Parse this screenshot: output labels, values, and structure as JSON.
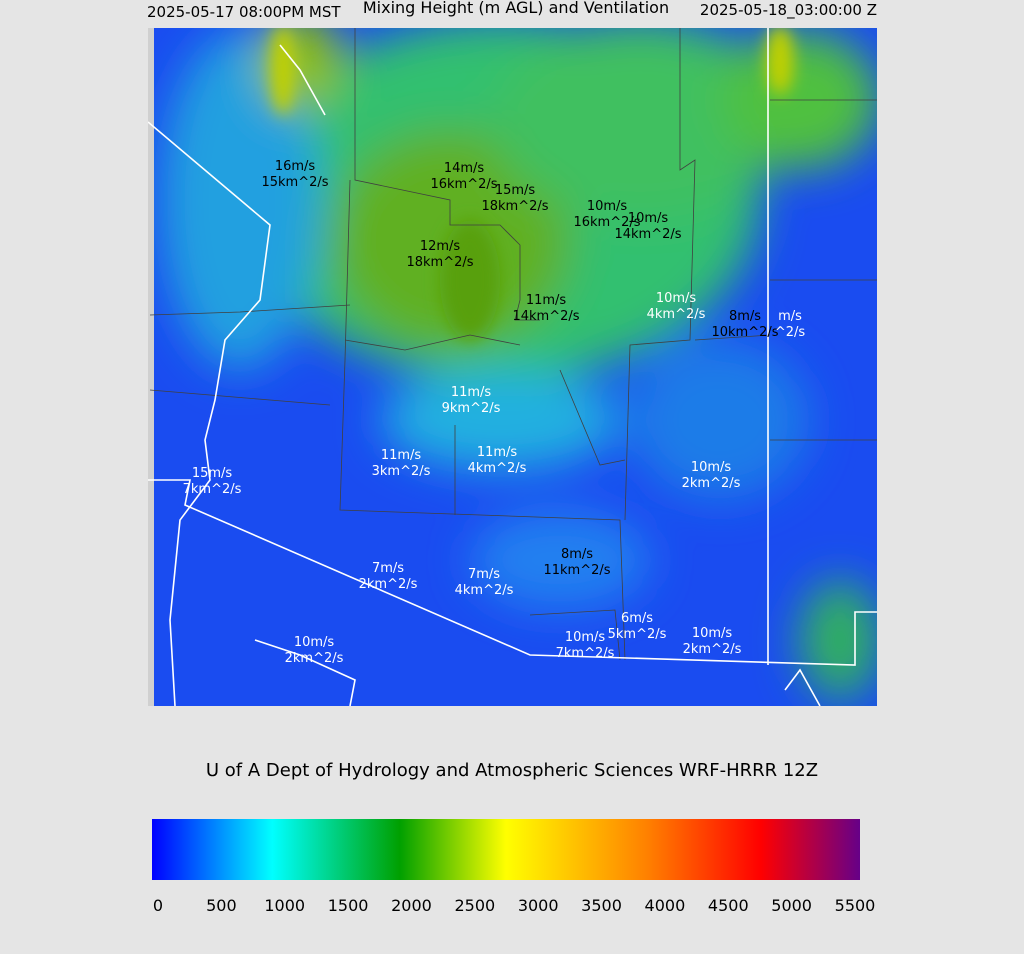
{
  "header": {
    "valid_local": "2025-05-17 08:00PM MST",
    "title": "Mixing Height (m AGL) and Ventilation",
    "valid_utc": "2025-05-18_03:00:00 Z"
  },
  "map": {
    "labels": [
      {
        "speed": "16m/s",
        "ventilation": "15km^2/s"
      },
      {
        "speed": "14m/s",
        "ventilation": "16km^2/s"
      },
      {
        "speed": "15m/s",
        "ventilation": "18km^2/s"
      },
      {
        "speed": "10m/s",
        "ventilation": "16km^2/s"
      },
      {
        "speed": "10m/s",
        "ventilation": "14km^2/s"
      },
      {
        "speed": "12m/s",
        "ventilation": "18km^2/s"
      },
      {
        "speed": "11m/s",
        "ventilation": "14km^2/s"
      },
      {
        "speed": "10m/s",
        "ventilation": "4km^2/s"
      },
      {
        "speed": "8m/s",
        "ventilation": "10km^2/s"
      },
      {
        "speed": "m/s",
        "ventilation": "^2/s"
      },
      {
        "speed": "11m/s",
        "ventilation": "9km^2/s"
      },
      {
        "speed": "11m/s",
        "ventilation": "3km^2/s"
      },
      {
        "speed": "11m/s",
        "ventilation": "4km^2/s"
      },
      {
        "speed": "15m/s",
        "ventilation": "7km^2/s"
      },
      {
        "speed": "10m/s",
        "ventilation": "2km^2/s"
      },
      {
        "speed": "8m/s",
        "ventilation": "11km^2/s"
      },
      {
        "speed": "7m/s",
        "ventilation": "2km^2/s"
      },
      {
        "speed": "7m/s",
        "ventilation": "4km^2/s"
      },
      {
        "speed": "6m/s",
        "ventilation": "5km^2/s"
      },
      {
        "speed": "10m/s",
        "ventilation": "7km^2/s"
      },
      {
        "speed": "10m/s",
        "ventilation": "2km^2/s"
      },
      {
        "speed": "10m/s",
        "ventilation": "2km^2/s"
      }
    ]
  },
  "footer": {
    "credit": "U of A Dept of Hydrology and Atmospheric Sciences WRF-HRRR 12Z"
  },
  "colorbar": {
    "lim": [
      0,
      5500
    ],
    "ticks": [
      0,
      500,
      1000,
      1500,
      2000,
      2500,
      3000,
      3500,
      4000,
      4500,
      5000,
      5500
    ]
  }
}
